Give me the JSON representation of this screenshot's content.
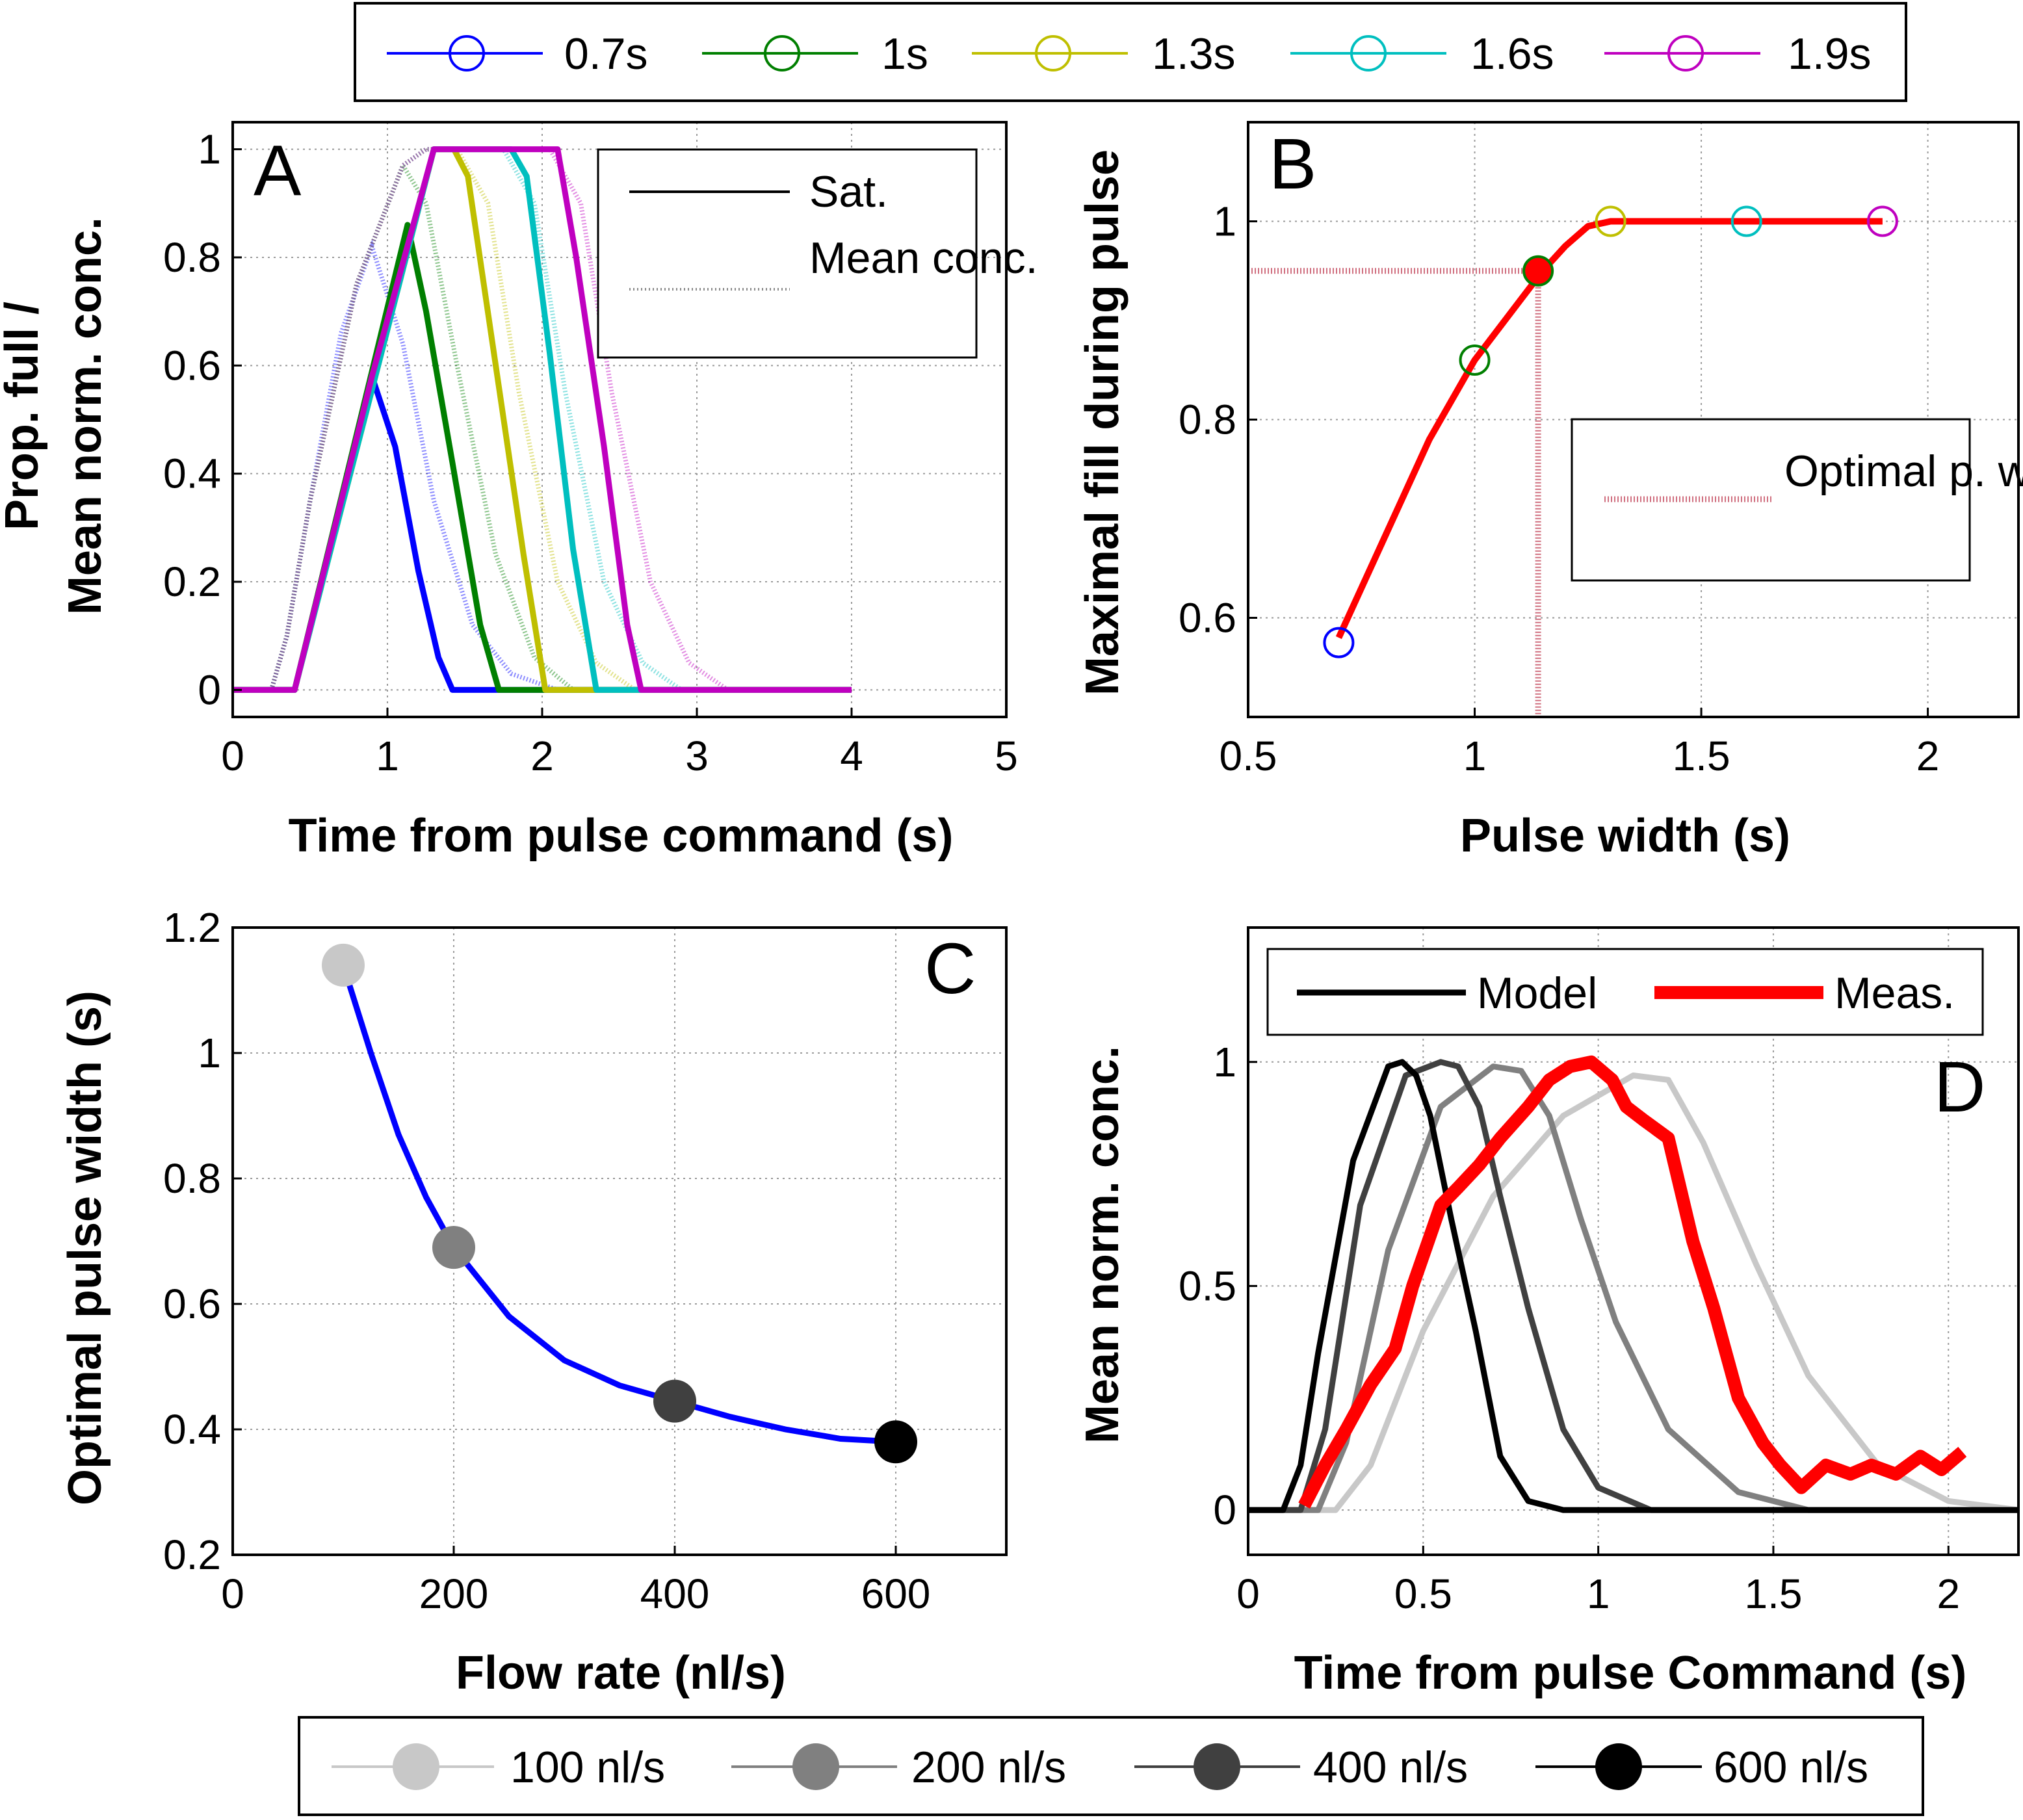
{
  "top_legend": {
    "items": [
      {
        "label": "0.7s",
        "color": "#0000ff"
      },
      {
        "label": "1s",
        "color": "#007f00"
      },
      {
        "label": "1.3s",
        "color": "#bfbf00"
      },
      {
        "label": "1.6s",
        "color": "#00bfbf"
      },
      {
        "label": "1.9s",
        "color": "#bf00bf"
      }
    ]
  },
  "bottom_legend": {
    "items": [
      {
        "label": "100 nl/s",
        "color": "#c8c8c8"
      },
      {
        "label": "200 nl/s",
        "color": "#808080"
      },
      {
        "label": "400 nl/s",
        "color": "#404040"
      },
      {
        "label": "600 nl/s",
        "color": "#000000"
      }
    ]
  },
  "chart_data": [
    {
      "panel": "A",
      "type": "line",
      "xlabel": "Time from pulse command (s)",
      "ylabel_lines": [
        "Prop. full /",
        "Mean norm. conc."
      ],
      "xlim": [
        0,
        5
      ],
      "ylim": [
        -0.05,
        1.05
      ],
      "xticks": [
        "0",
        "1",
        "2",
        "3",
        "4",
        "5"
      ],
      "yticks": [
        "0",
        "0.2",
        "0.4",
        "0.6",
        "0.8",
        "1"
      ],
      "grid": true,
      "legend": {
        "position": "top-right",
        "entries": [
          "Sat.",
          "Mean conc."
        ]
      },
      "series": [
        {
          "name": "0.7s",
          "color": "#0000ff",
          "kind": "Sat.",
          "x": [
            0,
            0.4,
            0.9,
            1.05,
            1.2,
            1.33,
            1.42,
            4
          ],
          "y": [
            0,
            0,
            0.58,
            0.45,
            0.22,
            0.06,
            0,
            0
          ]
        },
        {
          "name": "1s",
          "color": "#007f00",
          "kind": "Sat.",
          "x": [
            0,
            0.4,
            1.13,
            1.25,
            1.42,
            1.6,
            1.72,
            4
          ],
          "y": [
            0,
            0,
            0.86,
            0.7,
            0.42,
            0.12,
            0,
            0
          ]
        },
        {
          "name": "1.3s",
          "color": "#bfbf00",
          "kind": "Sat.",
          "x": [
            0,
            0.4,
            1.3,
            1.43,
            1.52,
            1.7,
            1.88,
            2.02,
            4
          ],
          "y": [
            0,
            0,
            1,
            1,
            0.95,
            0.6,
            0.25,
            0,
            0
          ]
        },
        {
          "name": "1.6s",
          "color": "#00bfbf",
          "kind": "Sat.",
          "x": [
            0,
            0.4,
            1.3,
            1.8,
            1.9,
            2.05,
            2.2,
            2.35,
            4
          ],
          "y": [
            0,
            0,
            1,
            1,
            0.95,
            0.62,
            0.26,
            0,
            0
          ]
        },
        {
          "name": "1.9s",
          "color": "#bf00bf",
          "kind": "Sat.",
          "x": [
            0,
            0.4,
            0.9,
            1.3,
            2.1,
            2.22,
            2.4,
            2.55,
            2.64,
            4
          ],
          "y": [
            0,
            0,
            0.58,
            1,
            1,
            0.8,
            0.45,
            0.12,
            0,
            0
          ]
        },
        {
          "name": "0.7s",
          "color": "#0000ff",
          "kind": "Mean conc.",
          "x": [
            0.25,
            0.35,
            0.5,
            0.7,
            0.9,
            1.1,
            1.3,
            1.55,
            1.8,
            2.1,
            2.5
          ],
          "y": [
            0,
            0.1,
            0.35,
            0.66,
            0.82,
            0.64,
            0.35,
            0.12,
            0.03,
            0,
            0
          ]
        },
        {
          "name": "1s",
          "color": "#007f00",
          "kind": "Mean conc.",
          "x": [
            0.25,
            0.35,
            0.5,
            0.8,
            1.1,
            1.25,
            1.45,
            1.7,
            1.95,
            2.2,
            2.6
          ],
          "y": [
            0,
            0.1,
            0.35,
            0.75,
            0.97,
            0.9,
            0.6,
            0.25,
            0.06,
            0,
            0
          ]
        },
        {
          "name": "1.3s",
          "color": "#bfbf00",
          "kind": "Mean conc.",
          "x": [
            0.25,
            0.35,
            0.5,
            0.8,
            1.1,
            1.25,
            1.45,
            1.65,
            1.85,
            2.1,
            2.35,
            2.6,
            2.9
          ],
          "y": [
            0,
            0.1,
            0.35,
            0.75,
            0.97,
            1,
            1,
            0.9,
            0.55,
            0.2,
            0.05,
            0,
            0
          ]
        },
        {
          "name": "1.6s",
          "color": "#00bfbf",
          "kind": "Mean conc.",
          "x": [
            0.25,
            0.35,
            0.5,
            0.8,
            1.1,
            1.25,
            1.75,
            1.95,
            2.15,
            2.4,
            2.65,
            2.9,
            3.2
          ],
          "y": [
            0,
            0.1,
            0.35,
            0.75,
            0.97,
            1,
            1,
            0.9,
            0.55,
            0.2,
            0.05,
            0,
            0
          ]
        },
        {
          "name": "1.9s",
          "color": "#bf00bf",
          "kind": "Mean conc.",
          "x": [
            0.25,
            0.35,
            0.5,
            0.8,
            1.1,
            1.25,
            2.05,
            2.25,
            2.45,
            2.7,
            2.95,
            3.2,
            3.5
          ],
          "y": [
            0,
            0.1,
            0.35,
            0.75,
            0.97,
            1,
            1,
            0.9,
            0.55,
            0.2,
            0.05,
            0,
            0
          ]
        }
      ]
    },
    {
      "panel": "B",
      "type": "line",
      "xlabel": "Pulse width (s)",
      "ylabel": "Maximal fill during pulse",
      "xlim": [
        0.5,
        2.2
      ],
      "ylim": [
        0.5,
        1.1
      ],
      "xticks": [
        "0.5",
        "1",
        "1.5",
        "2"
      ],
      "yticks": [
        "0.6",
        "0.8",
        "1"
      ],
      "grid": true,
      "legend": {
        "position": "right",
        "entries": [
          "Optimal p. width"
        ]
      },
      "curve": {
        "color": "#ff0000",
        "x": [
          0.7,
          0.8,
          0.9,
          1.0,
          1.1,
          1.15,
          1.2,
          1.25,
          1.3,
          1.9
        ],
        "y": [
          0.58,
          0.68,
          0.78,
          0.86,
          0.92,
          0.95,
          0.975,
          0.995,
          1.0,
          1.0
        ]
      },
      "points": [
        {
          "x": 0.7,
          "y": 0.575,
          "color": "#0000ff"
        },
        {
          "x": 1.0,
          "y": 0.86,
          "color": "#007f00"
        },
        {
          "x": 1.3,
          "y": 1.0,
          "color": "#bfbf00"
        },
        {
          "x": 1.6,
          "y": 1.0,
          "color": "#00bfbf"
        },
        {
          "x": 1.9,
          "y": 1.0,
          "color": "#bf00bf"
        }
      ],
      "optimal": {
        "x": 1.14,
        "y": 0.95,
        "color": "#d07080"
      }
    },
    {
      "panel": "C",
      "type": "line",
      "xlabel": "Flow rate (nl/s)",
      "ylabel": "Optimal pulse width (s)",
      "xlim": [
        0,
        700
      ],
      "ylim": [
        0.2,
        1.2
      ],
      "xticks": [
        "0",
        "200",
        "400",
        "600"
      ],
      "yticks": [
        "0.2",
        "0.4",
        "0.6",
        "0.8",
        "1",
        "1.2"
      ],
      "grid": true,
      "curve": {
        "color": "#0000ff",
        "x": [
          100,
          125,
          150,
          175,
          200,
          250,
          300,
          350,
          400,
          450,
          500,
          550,
          600
        ],
        "y": [
          1.14,
          1.0,
          0.87,
          0.77,
          0.69,
          0.58,
          0.51,
          0.47,
          0.445,
          0.42,
          0.4,
          0.385,
          0.38
        ]
      },
      "points": [
        {
          "x": 100,
          "y": 1.14,
          "color": "#c8c8c8"
        },
        {
          "x": 200,
          "y": 0.69,
          "color": "#808080"
        },
        {
          "x": 400,
          "y": 0.445,
          "color": "#404040"
        },
        {
          "x": 600,
          "y": 0.38,
          "color": "#000000"
        }
      ]
    },
    {
      "panel": "D",
      "type": "line",
      "xlabel": "Time from pulse Command (s)",
      "ylabel": "Mean norm. conc.",
      "xlim": [
        0,
        2.2
      ],
      "ylim": [
        -0.1,
        1.3
      ],
      "xticks": [
        "0",
        "0.5",
        "1",
        "1.5",
        "2"
      ],
      "yticks": [
        "0",
        "0.5",
        "1"
      ],
      "grid": true,
      "legend": {
        "position": "top",
        "entries": [
          "Model",
          "Meas."
        ]
      },
      "series": [
        {
          "name": "100 nl/s",
          "color": "#c8c8c8",
          "x": [
            0,
            0.25,
            0.35,
            0.5,
            0.7,
            0.9,
            1.1,
            1.2,
            1.3,
            1.45,
            1.6,
            1.8,
            2.0,
            2.2
          ],
          "y": [
            0,
            0,
            0.1,
            0.4,
            0.7,
            0.88,
            0.97,
            0.96,
            0.82,
            0.55,
            0.3,
            0.1,
            0.02,
            0
          ]
        },
        {
          "name": "200 nl/s",
          "color": "#808080",
          "x": [
            0,
            0.2,
            0.28,
            0.4,
            0.55,
            0.7,
            0.78,
            0.86,
            0.95,
            1.05,
            1.2,
            1.4,
            1.6,
            2.2
          ],
          "y": [
            0,
            0,
            0.15,
            0.58,
            0.9,
            0.99,
            0.98,
            0.88,
            0.65,
            0.42,
            0.18,
            0.04,
            0,
            0
          ]
        },
        {
          "name": "400 nl/s",
          "color": "#404040",
          "x": [
            0,
            0.15,
            0.22,
            0.32,
            0.45,
            0.55,
            0.6,
            0.66,
            0.72,
            0.8,
            0.9,
            1.0,
            1.15,
            2.2
          ],
          "y": [
            0,
            0,
            0.18,
            0.68,
            0.97,
            1,
            0.99,
            0.9,
            0.7,
            0.45,
            0.18,
            0.05,
            0,
            0
          ]
        },
        {
          "name": "600 nl/s",
          "color": "#000000",
          "x": [
            0,
            0.1,
            0.15,
            0.2,
            0.3,
            0.4,
            0.44,
            0.48,
            0.52,
            0.58,
            0.65,
            0.72,
            0.8,
            0.9,
            2.2
          ],
          "y": [
            0,
            0,
            0.1,
            0.35,
            0.78,
            0.99,
            1,
            0.97,
            0.88,
            0.65,
            0.4,
            0.12,
            0.02,
            0,
            0
          ]
        },
        {
          "name": "Meas.",
          "color": "#ff0000",
          "x": [
            0.16,
            0.22,
            0.28,
            0.35,
            0.42,
            0.47,
            0.55,
            0.6,
            0.66,
            0.72,
            0.8,
            0.86,
            0.92,
            0.98,
            1.04,
            1.08,
            1.13,
            1.2,
            1.27,
            1.33,
            1.4,
            1.47,
            1.52,
            1.58,
            1.65,
            1.72,
            1.78,
            1.85,
            1.92,
            1.98,
            2.04
          ],
          "y": [
            0.01,
            0.1,
            0.18,
            0.28,
            0.36,
            0.5,
            0.68,
            0.72,
            0.77,
            0.83,
            0.9,
            0.96,
            0.99,
            1.0,
            0.96,
            0.9,
            0.87,
            0.83,
            0.6,
            0.45,
            0.25,
            0.15,
            0.1,
            0.05,
            0.1,
            0.08,
            0.1,
            0.08,
            0.12,
            0.09,
            0.13
          ]
        }
      ]
    }
  ]
}
